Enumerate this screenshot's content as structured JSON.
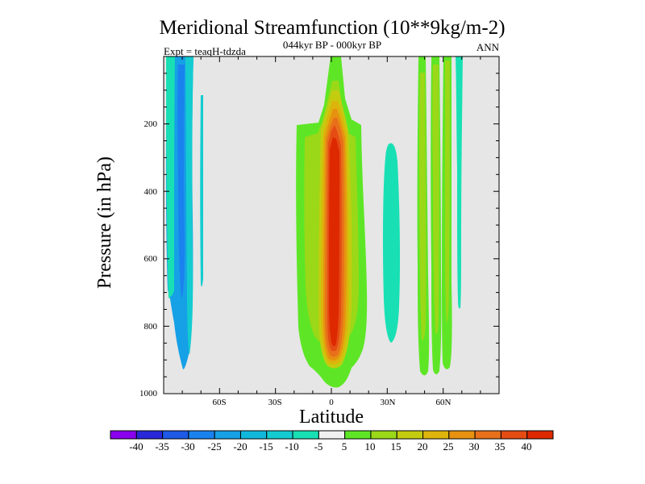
{
  "chart_data": {
    "type": "heatmap",
    "title": "Meridional Streamfunction (10**9kg/m-2)",
    "subtitle": "044kyr BP - 000kyr BP",
    "left_label": "Expt = teaqH-tdzda",
    "right_label": "ANN",
    "xlabel": "Latitude",
    "ylabel": "Pressure (in hPa)",
    "xlim": [
      -90,
      90
    ],
    "ylim": [
      1000,
      0
    ],
    "x_ticks": [
      {
        "value": -60,
        "label": "60S"
      },
      {
        "value": -30,
        "label": "30S"
      },
      {
        "value": 0,
        "label": "0"
      },
      {
        "value": 30,
        "label": "30N"
      },
      {
        "value": 60,
        "label": "60N"
      }
    ],
    "y_ticks": [
      {
        "value": 200,
        "label": "200"
      },
      {
        "value": 400,
        "label": "400"
      },
      {
        "value": 600,
        "label": "600"
      },
      {
        "value": 800,
        "label": "800"
      },
      {
        "value": 1000,
        "label": "1000"
      }
    ],
    "colorbar": {
      "labels": [
        "-40",
        "-35",
        "-30",
        "-25",
        "-20",
        "-15",
        "-10",
        "-5",
        "5",
        "10",
        "15",
        "20",
        "25",
        "30",
        "35",
        "40"
      ],
      "colors": [
        "#8a00ee",
        "#2828d8",
        "#1e5ae6",
        "#1a82ee",
        "#16a0e6",
        "#12b8dc",
        "#14ccd0",
        "#18e0b4",
        "#f0f0f0",
        "#5ee626",
        "#9ad818",
        "#c4cc10",
        "#dcb40c",
        "#e69210",
        "#e8701a",
        "#e44c14",
        "#dd2800"
      ]
    },
    "features": [
      {
        "name": "Tropical positive cell (core)",
        "lat_range": [
          -5,
          5
        ],
        "pressure_range": [
          140,
          990
        ],
        "peak_value": 40
      },
      {
        "name": "Tropical positive cell (envelope)",
        "lat_range": [
          -18,
          18
        ],
        "pressure_range": [
          200,
          960
        ],
        "peak_value": 12
      },
      {
        "name": "Southern high-latitude negative cells",
        "lat_range": [
          -88,
          -70
        ],
        "pressure_range": [
          0,
          930
        ],
        "peak_value": -25
      },
      {
        "name": "Northern subtropical negative cell",
        "lat_range": [
          28,
          37
        ],
        "pressure_range": [
          260,
          860
        ],
        "peak_value": -8
      },
      {
        "name": "Northern mid-latitude positive bands",
        "lat_range": [
          48,
          67
        ],
        "pressure_range": [
          0,
          960
        ],
        "peak_value": 15
      }
    ]
  }
}
